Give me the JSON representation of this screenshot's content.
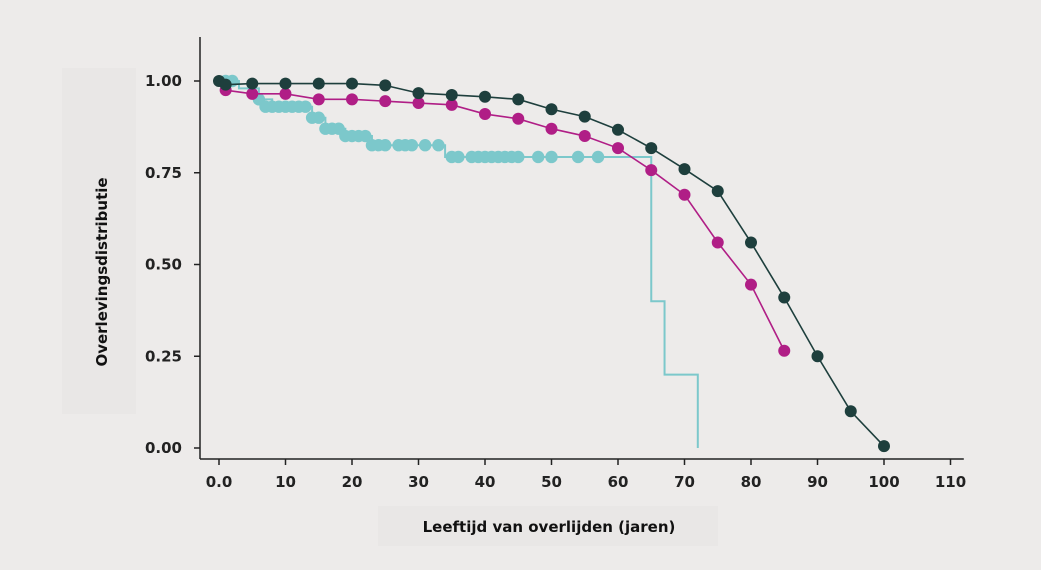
{
  "chart_data": {
    "type": "line",
    "title": "",
    "xlabel": "Leeftijd van overlijden (jaren)",
    "ylabel": "Overlevingsdistributie",
    "xlim": [
      -2,
      112
    ],
    "ylim": [
      -0.03,
      1.12
    ],
    "xticks": [
      0,
      10,
      20,
      30,
      40,
      50,
      60,
      70,
      80,
      90,
      100,
      110
    ],
    "xtick_labels": [
      "0.0",
      "10",
      "20",
      "30",
      "40",
      "50",
      "60",
      "70",
      "80",
      "90",
      "100",
      "110"
    ],
    "yticks": [
      0,
      0.25,
      0.5,
      0.75,
      1.0
    ],
    "ytick_labels": [
      "0.00",
      "0.25",
      "0.50",
      "0.75",
      "1.00"
    ],
    "grid": false,
    "series": [
      {
        "color": "#7cc8cb",
        "style": "step",
        "line": [
          [
            0,
            1.0
          ],
          [
            3,
            1.0
          ],
          [
            3,
            0.98
          ],
          [
            6,
            0.98
          ],
          [
            6,
            0.95
          ],
          [
            8,
            0.95
          ],
          [
            8,
            0.93
          ],
          [
            14,
            0.93
          ],
          [
            14,
            0.9
          ],
          [
            16,
            0.9
          ],
          [
            16,
            0.87
          ],
          [
            19,
            0.87
          ],
          [
            19,
            0.85
          ],
          [
            23,
            0.85
          ],
          [
            23,
            0.825
          ],
          [
            34,
            0.825
          ],
          [
            34,
            0.793
          ],
          [
            65,
            0.793
          ],
          [
            65,
            0.4
          ],
          [
            67,
            0.4
          ],
          [
            67,
            0.2
          ],
          [
            72,
            0.2
          ],
          [
            72,
            0.0
          ]
        ],
        "points": [
          [
            1,
            1.0
          ],
          [
            2,
            1.0
          ],
          [
            6,
            0.95
          ],
          [
            7,
            0.93
          ],
          [
            8,
            0.93
          ],
          [
            9,
            0.93
          ],
          [
            10,
            0.93
          ],
          [
            11,
            0.93
          ],
          [
            12,
            0.93
          ],
          [
            13,
            0.93
          ],
          [
            14,
            0.9
          ],
          [
            15,
            0.9
          ],
          [
            16,
            0.87
          ],
          [
            17,
            0.87
          ],
          [
            18,
            0.87
          ],
          [
            19,
            0.85
          ],
          [
            20,
            0.85
          ],
          [
            21,
            0.85
          ],
          [
            22,
            0.85
          ],
          [
            23,
            0.825
          ],
          [
            24,
            0.825
          ],
          [
            25,
            0.825
          ],
          [
            27,
            0.825
          ],
          [
            28,
            0.825
          ],
          [
            29,
            0.825
          ],
          [
            31,
            0.825
          ],
          [
            33,
            0.825
          ],
          [
            35,
            0.793
          ],
          [
            36,
            0.793
          ],
          [
            38,
            0.793
          ],
          [
            39,
            0.793
          ],
          [
            40,
            0.793
          ],
          [
            41,
            0.793
          ],
          [
            42,
            0.793
          ],
          [
            43,
            0.793
          ],
          [
            44,
            0.793
          ],
          [
            45,
            0.793
          ],
          [
            48,
            0.793
          ],
          [
            50,
            0.793
          ],
          [
            54,
            0.793
          ],
          [
            57,
            0.793
          ]
        ]
      },
      {
        "color": "#b01e86",
        "style": "line",
        "points": [
          [
            1,
            0.975
          ],
          [
            5,
            0.965
          ],
          [
            10,
            0.965
          ],
          [
            15,
            0.95
          ],
          [
            20,
            0.95
          ],
          [
            25,
            0.945
          ],
          [
            30,
            0.94
          ],
          [
            35,
            0.935
          ],
          [
            40,
            0.91
          ],
          [
            45,
            0.897
          ],
          [
            50,
            0.87
          ],
          [
            55,
            0.85
          ],
          [
            60,
            0.817
          ],
          [
            65,
            0.757
          ],
          [
            70,
            0.69
          ],
          [
            75,
            0.56
          ],
          [
            80,
            0.445
          ],
          [
            85,
            0.265
          ]
        ]
      },
      {
        "color": "#1e3f3d",
        "style": "line",
        "points": [
          [
            0,
            1.0
          ],
          [
            1,
            0.99
          ],
          [
            5,
            0.993
          ],
          [
            10,
            0.993
          ],
          [
            15,
            0.993
          ],
          [
            20,
            0.993
          ],
          [
            25,
            0.988
          ],
          [
            30,
            0.967
          ],
          [
            35,
            0.962
          ],
          [
            40,
            0.957
          ],
          [
            45,
            0.95
          ],
          [
            50,
            0.923
          ],
          [
            55,
            0.903
          ],
          [
            60,
            0.867
          ],
          [
            65,
            0.817
          ],
          [
            70,
            0.76
          ],
          [
            75,
            0.7
          ],
          [
            80,
            0.56
          ],
          [
            85,
            0.41
          ],
          [
            90,
            0.25
          ],
          [
            95,
            0.1
          ],
          [
            100,
            0.005
          ]
        ]
      }
    ]
  }
}
